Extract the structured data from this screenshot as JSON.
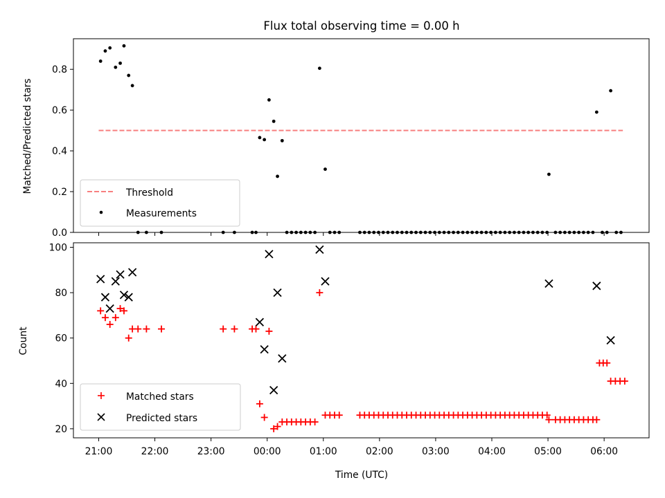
{
  "chart_data": [
    {
      "type": "scatter",
      "title": "Flux total observing time = 0.00 h",
      "ylabel": "Matched/Predicted stars",
      "xlabel": "",
      "xlim": [
        "20:33",
        "06:48"
      ],
      "ylim": [
        0,
        0.95
      ],
      "x_ticks": [
        "21:00",
        "22:00",
        "23:00",
        "00:00",
        "01:00",
        "02:00",
        "03:00",
        "04:00",
        "05:00",
        "06:00"
      ],
      "y_ticks": [
        "0.0",
        "0.2",
        "0.4",
        "0.6",
        "0.8"
      ],
      "y_tick_values": [
        0,
        0.2,
        0.4,
        0.6,
        0.8
      ],
      "legend": {
        "position": "lower-left",
        "entries": [
          "Threshold",
          "Measurements"
        ]
      },
      "threshold": {
        "name": "Threshold",
        "value": 0.5,
        "x_start": "21:00",
        "x_end": "06:20",
        "color": "#f77f7f",
        "style": "dashed"
      },
      "series": [
        {
          "name": "Measurements",
          "marker": "dot",
          "color": "#000000",
          "points": [
            [
              "21:02",
              0.84
            ],
            [
              "21:07",
              0.89
            ],
            [
              "21:12",
              0.905
            ],
            [
              "21:18",
              0.81
            ],
            [
              "21:23",
              0.83
            ],
            [
              "21:27",
              0.915
            ],
            [
              "21:32",
              0.77
            ],
            [
              "21:36",
              0.72
            ],
            [
              "21:42",
              0.0
            ],
            [
              "21:51",
              0.0
            ],
            [
              "22:07",
              0.0
            ],
            [
              "23:13",
              0.0
            ],
            [
              "23:25",
              0.0
            ],
            [
              "23:44",
              0.0
            ],
            [
              "23:48",
              0.0
            ],
            [
              "23:52",
              0.465
            ],
            [
              "23:57",
              0.455
            ],
            [
              "00:02",
              0.65
            ],
            [
              "00:07",
              0.545
            ],
            [
              "00:11",
              0.275
            ],
            [
              "00:16",
              0.45
            ],
            [
              "00:21",
              0.0
            ],
            [
              "00:26",
              0.0
            ],
            [
              "00:31",
              0.0
            ],
            [
              "00:36",
              0.0
            ],
            [
              "00:41",
              0.0
            ],
            [
              "00:46",
              0.0
            ],
            [
              "00:51",
              0.0
            ],
            [
              "00:56",
              0.805
            ],
            [
              "01:02",
              0.31
            ],
            [
              "01:07",
              0.0
            ],
            [
              "01:12",
              0.0
            ],
            [
              "01:17",
              0.0
            ],
            [
              "01:39",
              0.0
            ],
            [
              "01:44",
              0.0
            ],
            [
              "01:49",
              0.0
            ],
            [
              "01:54",
              0.0
            ],
            [
              "01:59",
              0.0
            ],
            [
              "02:04",
              0.0
            ],
            [
              "02:09",
              0.0
            ],
            [
              "02:14",
              0.0
            ],
            [
              "02:19",
              0.0
            ],
            [
              "02:24",
              0.0
            ],
            [
              "02:29",
              0.0
            ],
            [
              "02:34",
              0.0
            ],
            [
              "02:39",
              0.0
            ],
            [
              "02:44",
              0.0
            ],
            [
              "02:49",
              0.0
            ],
            [
              "02:54",
              0.0
            ],
            [
              "02:59",
              0.0
            ],
            [
              "03:04",
              0.0
            ],
            [
              "03:09",
              0.0
            ],
            [
              "03:14",
              0.0
            ],
            [
              "03:19",
              0.0
            ],
            [
              "03:24",
              0.0
            ],
            [
              "03:29",
              0.0
            ],
            [
              "03:34",
              0.0
            ],
            [
              "03:39",
              0.0
            ],
            [
              "03:44",
              0.0
            ],
            [
              "03:49",
              0.0
            ],
            [
              "03:54",
              0.0
            ],
            [
              "03:59",
              0.0
            ],
            [
              "04:04",
              0.0
            ],
            [
              "04:09",
              0.0
            ],
            [
              "04:14",
              0.0
            ],
            [
              "04:19",
              0.0
            ],
            [
              "04:24",
              0.0
            ],
            [
              "04:29",
              0.0
            ],
            [
              "04:34",
              0.0
            ],
            [
              "04:39",
              0.0
            ],
            [
              "04:44",
              0.0
            ],
            [
              "04:49",
              0.0
            ],
            [
              "04:54",
              0.0
            ],
            [
              "04:59",
              0.0
            ],
            [
              "05:01",
              0.285
            ],
            [
              "05:08",
              0.0
            ],
            [
              "05:13",
              0.0
            ],
            [
              "05:18",
              0.0
            ],
            [
              "05:23",
              0.0
            ],
            [
              "05:28",
              0.0
            ],
            [
              "05:33",
              0.0
            ],
            [
              "05:38",
              0.0
            ],
            [
              "05:43",
              0.0
            ],
            [
              "05:48",
              0.0
            ],
            [
              "05:52",
              0.59
            ],
            [
              "05:58",
              0.0
            ],
            [
              "06:03",
              0.0
            ],
            [
              "06:07",
              0.695
            ],
            [
              "06:13",
              0.0
            ],
            [
              "06:18",
              0.0
            ]
          ]
        }
      ]
    },
    {
      "type": "scatter",
      "title": "",
      "ylabel": "Count",
      "xlabel": "Time (UTC)",
      "xlim": [
        "20:33",
        "06:48"
      ],
      "ylim": [
        16,
        102
      ],
      "x_ticks": [
        "21:00",
        "22:00",
        "23:00",
        "00:00",
        "01:00",
        "02:00",
        "03:00",
        "04:00",
        "05:00",
        "06:00"
      ],
      "y_ticks": [
        "20",
        "40",
        "60",
        "80",
        "100"
      ],
      "y_tick_values": [
        20,
        40,
        60,
        80,
        100
      ],
      "legend": {
        "position": "lower-left",
        "entries": [
          "Matched stars",
          "Predicted stars"
        ]
      },
      "series": [
        {
          "name": "Matched stars",
          "marker": "plus",
          "color": "#ff0000",
          "points": [
            [
              "21:02",
              72
            ],
            [
              "21:07",
              69
            ],
            [
              "21:12",
              66
            ],
            [
              "21:18",
              69
            ],
            [
              "21:23",
              73
            ],
            [
              "21:27",
              72
            ],
            [
              "21:32",
              60
            ],
            [
              "21:36",
              64
            ],
            [
              "21:42",
              64
            ],
            [
              "21:51",
              64
            ],
            [
              "22:07",
              64
            ],
            [
              "23:13",
              64
            ],
            [
              "23:25",
              64
            ],
            [
              "23:44",
              64
            ],
            [
              "23:48",
              64
            ],
            [
              "23:52",
              31
            ],
            [
              "23:57",
              25
            ],
            [
              "00:02",
              63
            ],
            [
              "00:07",
              20
            ],
            [
              "00:11",
              21
            ],
            [
              "00:16",
              23
            ],
            [
              "00:21",
              23
            ],
            [
              "00:26",
              23
            ],
            [
              "00:31",
              23
            ],
            [
              "00:36",
              23
            ],
            [
              "00:41",
              23
            ],
            [
              "00:46",
              23
            ],
            [
              "00:51",
              23
            ],
            [
              "00:56",
              80
            ],
            [
              "01:02",
              26
            ],
            [
              "01:07",
              26
            ],
            [
              "01:12",
              26
            ],
            [
              "01:17",
              26
            ],
            [
              "01:39",
              26
            ],
            [
              "01:44",
              26
            ],
            [
              "01:49",
              26
            ],
            [
              "01:54",
              26
            ],
            [
              "01:59",
              26
            ],
            [
              "02:04",
              26
            ],
            [
              "02:09",
              26
            ],
            [
              "02:14",
              26
            ],
            [
              "02:19",
              26
            ],
            [
              "02:24",
              26
            ],
            [
              "02:29",
              26
            ],
            [
              "02:34",
              26
            ],
            [
              "02:39",
              26
            ],
            [
              "02:44",
              26
            ],
            [
              "02:49",
              26
            ],
            [
              "02:54",
              26
            ],
            [
              "02:59",
              26
            ],
            [
              "03:04",
              26
            ],
            [
              "03:09",
              26
            ],
            [
              "03:14",
              26
            ],
            [
              "03:19",
              26
            ],
            [
              "03:24",
              26
            ],
            [
              "03:29",
              26
            ],
            [
              "03:34",
              26
            ],
            [
              "03:39",
              26
            ],
            [
              "03:44",
              26
            ],
            [
              "03:49",
              26
            ],
            [
              "03:54",
              26
            ],
            [
              "03:59",
              26
            ],
            [
              "04:04",
              26
            ],
            [
              "04:09",
              26
            ],
            [
              "04:14",
              26
            ],
            [
              "04:19",
              26
            ],
            [
              "04:24",
              26
            ],
            [
              "04:29",
              26
            ],
            [
              "04:34",
              26
            ],
            [
              "04:39",
              26
            ],
            [
              "04:44",
              26
            ],
            [
              "04:49",
              26
            ],
            [
              "04:54",
              26
            ],
            [
              "04:59",
              26
            ],
            [
              "05:01",
              24
            ],
            [
              "05:08",
              24
            ],
            [
              "05:13",
              24
            ],
            [
              "05:18",
              24
            ],
            [
              "05:23",
              24
            ],
            [
              "05:28",
              24
            ],
            [
              "05:33",
              24
            ],
            [
              "05:38",
              24
            ],
            [
              "05:43",
              24
            ],
            [
              "05:48",
              24
            ],
            [
              "05:52",
              24
            ],
            [
              "05:55",
              49
            ],
            [
              "05:59",
              49
            ],
            [
              "06:03",
              49
            ],
            [
              "06:07",
              41
            ],
            [
              "06:12",
              41
            ],
            [
              "06:17",
              41
            ],
            [
              "06:22",
              41
            ]
          ]
        },
        {
          "name": "Predicted stars",
          "marker": "x",
          "color": "#000000",
          "points": [
            [
              "21:02",
              86
            ],
            [
              "21:07",
              78
            ],
            [
              "21:12",
              73
            ],
            [
              "21:18",
              85
            ],
            [
              "21:23",
              88
            ],
            [
              "21:27",
              79
            ],
            [
              "21:32",
              78
            ],
            [
              "21:36",
              89
            ],
            [
              "23:52",
              67
            ],
            [
              "23:57",
              55
            ],
            [
              "00:02",
              97
            ],
            [
              "00:07",
              37
            ],
            [
              "00:11",
              80
            ],
            [
              "00:16",
              51
            ],
            [
              "00:56",
              99
            ],
            [
              "01:02",
              85
            ],
            [
              "05:01",
              84
            ],
            [
              "05:52",
              83
            ],
            [
              "06:07",
              59
            ]
          ]
        }
      ]
    }
  ]
}
